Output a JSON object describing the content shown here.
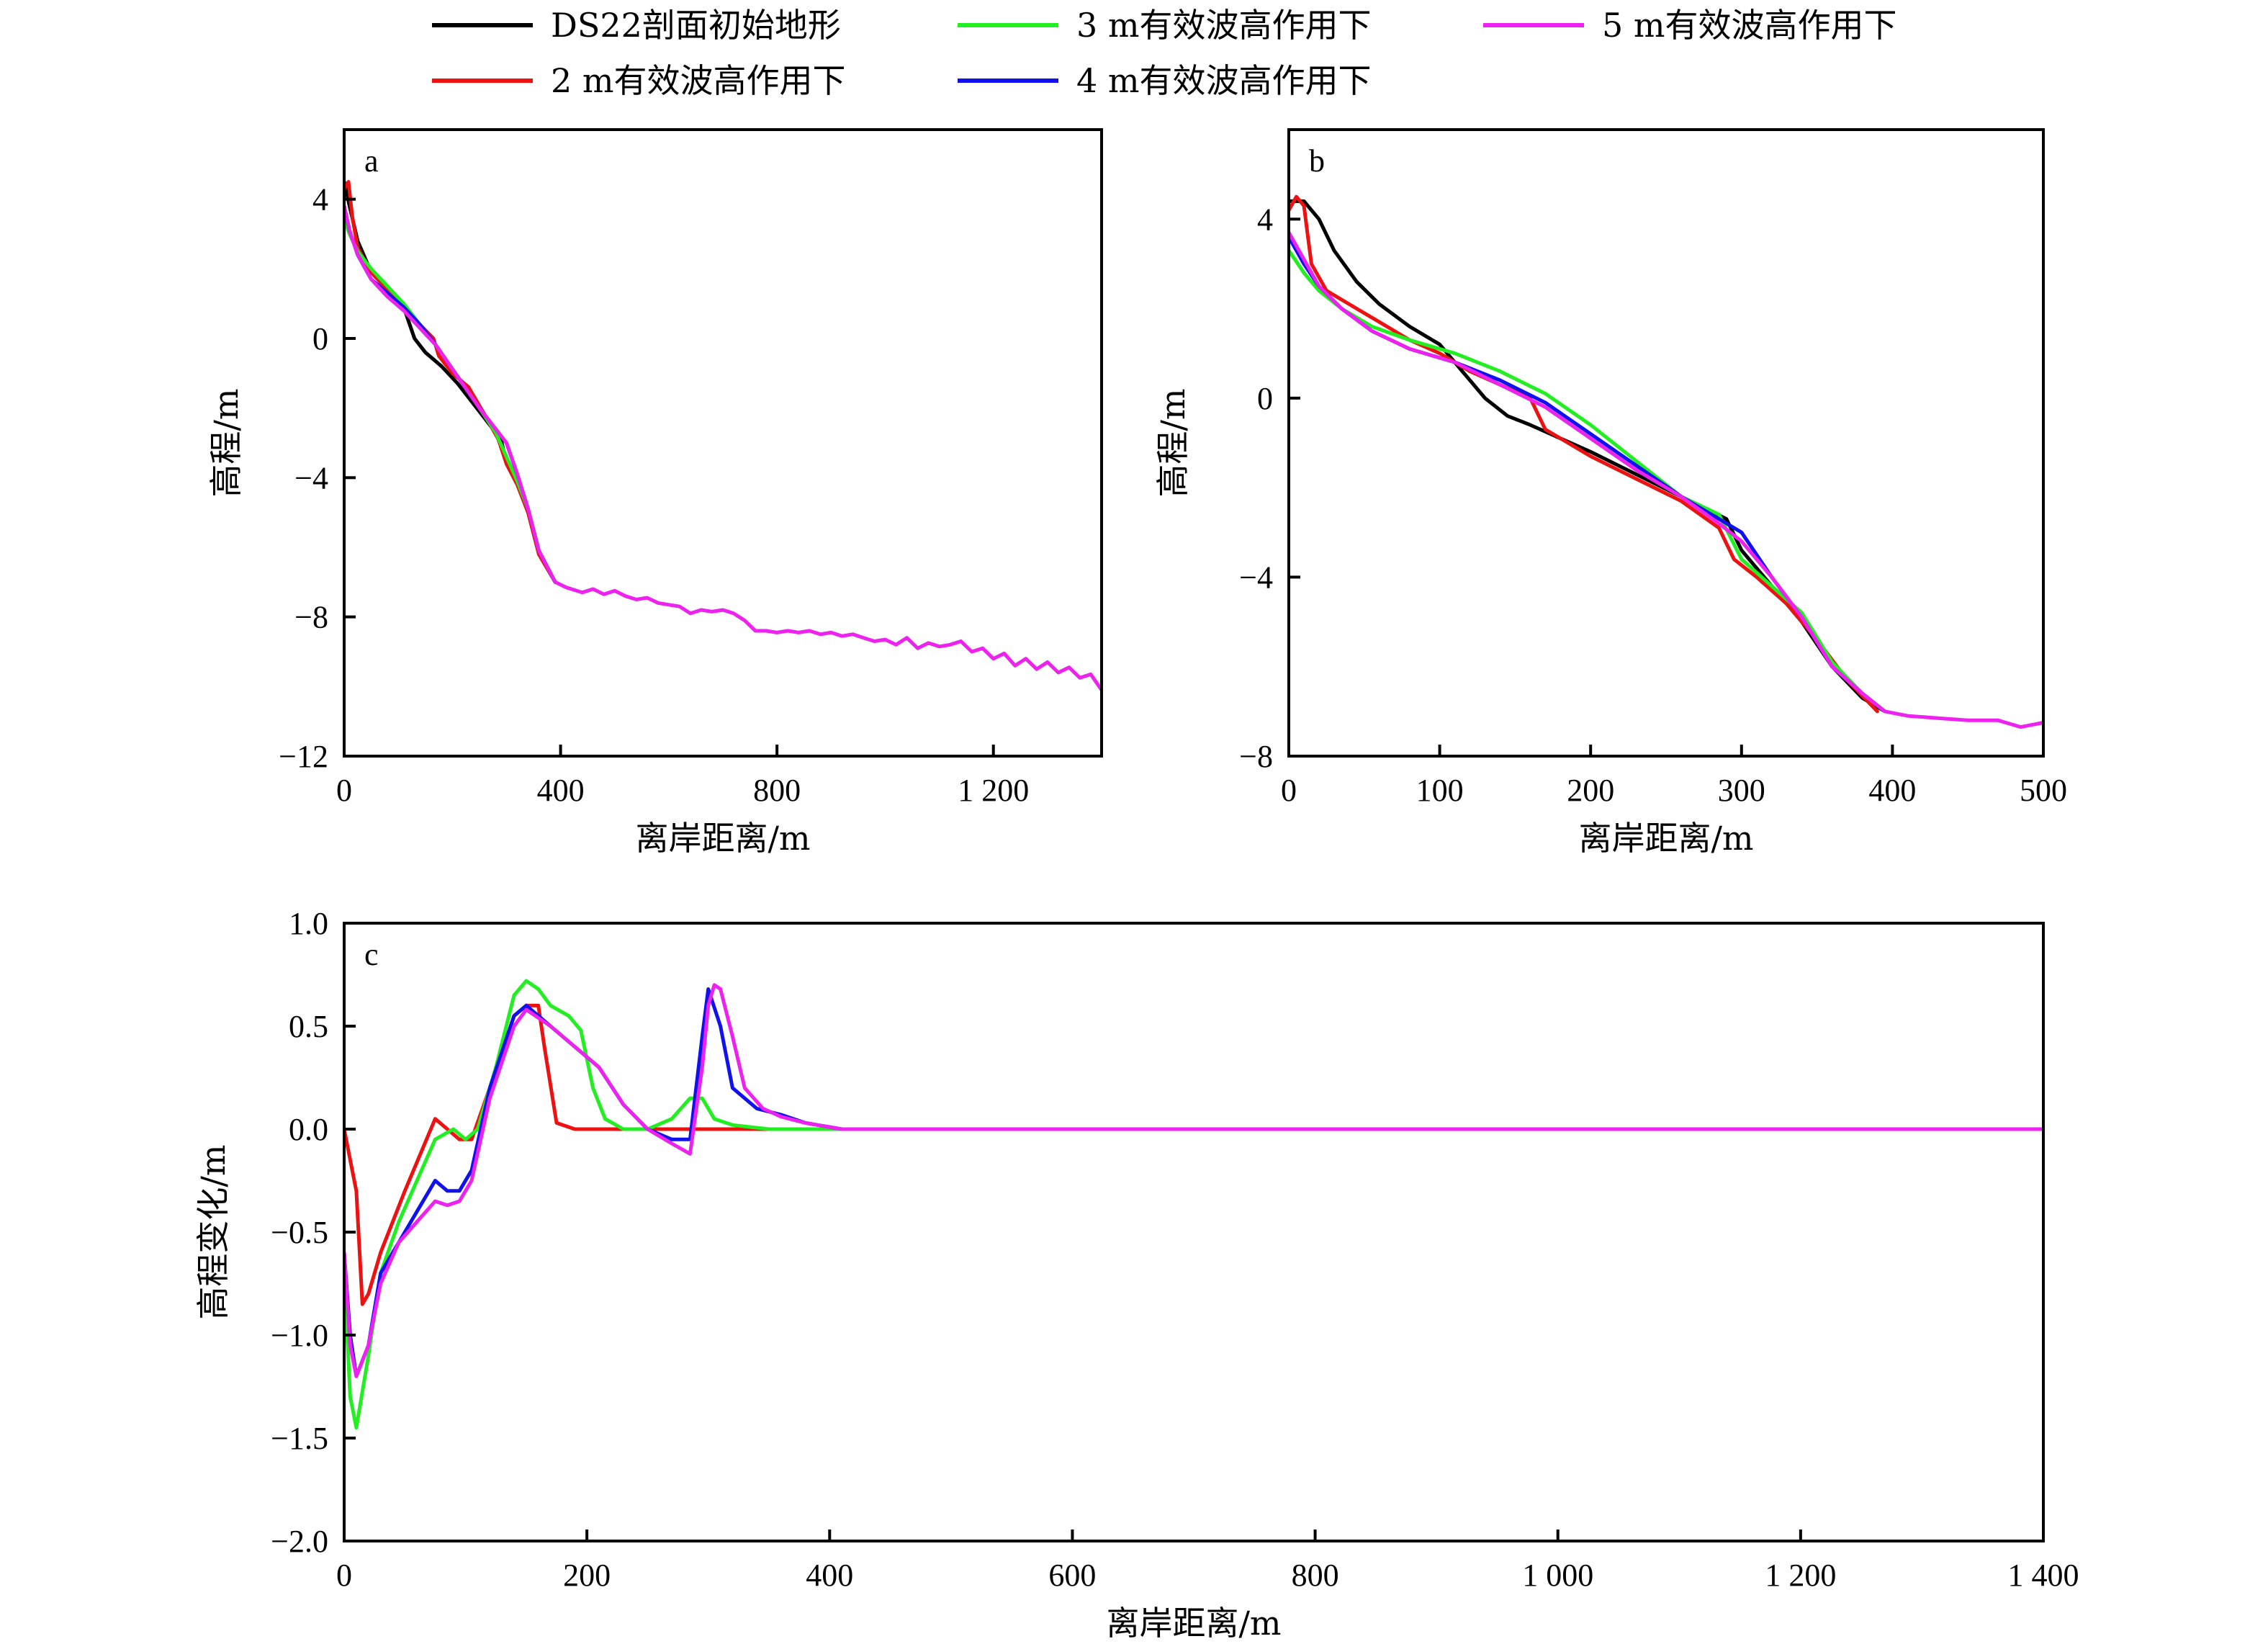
{
  "legend": [
    {
      "label": "DS22剖面初始地形",
      "color": "#000000"
    },
    {
      "label": "3 m有效波高作用下",
      "color": "#22ee22"
    },
    {
      "label": "5 m有效波高作用下",
      "color": "#ee22ee"
    },
    {
      "label": "2 m有效波高作用下",
      "color": "#ee1111"
    },
    {
      "label": "4 m有效波高作用下",
      "color": "#1111ee"
    }
  ],
  "chart_data": [
    {
      "id": "a",
      "type": "line",
      "panel_label": "a",
      "xlabel": "离岸距离/m",
      "ylabel": "高程/m",
      "xlim": [
        0,
        1400
      ],
      "ylim": [
        -12,
        6
      ],
      "xticks": [
        0,
        400,
        800,
        1200
      ],
      "xtick_labels": [
        "0",
        "400",
        "800",
        "1 200"
      ],
      "yticks": [
        4,
        0,
        -4,
        -8,
        -12
      ],
      "ytick_labels": [
        "4",
        "0",
        "−4",
        "−8",
        "−12"
      ],
      "series": [
        {
          "name": "DS22剖面初始地形",
          "color": "#000000",
          "x": [
            0,
            10,
            25,
            50,
            80,
            110,
            130,
            150,
            180,
            210,
            250,
            290,
            300,
            320,
            340,
            360,
            390
          ],
          "y": [
            4.5,
            3.8,
            2.8,
            1.9,
            1.4,
            0.9,
            0.0,
            -0.4,
            -0.8,
            -1.3,
            -2.1,
            -2.9,
            -3.6,
            -4.2,
            -5.0,
            -6.2,
            -7.0
          ]
        },
        {
          "name": "2 m有效波高作用下",
          "color": "#ee1111",
          "x": [
            0,
            8,
            15,
            25,
            50,
            80,
            110,
            140,
            165,
            175,
            200,
            230,
            260,
            285,
            300,
            320,
            340,
            360,
            390
          ],
          "y": [
            4.3,
            4.5,
            3.5,
            2.6,
            1.9,
            1.4,
            0.9,
            0.4,
            0.0,
            -0.5,
            -1.0,
            -1.4,
            -2.2,
            -2.9,
            -3.6,
            -4.2,
            -5.0,
            -6.2,
            -7.0
          ]
        },
        {
          "name": "3 m有效波高作用下",
          "color": "#22ee22",
          "x": [
            0,
            10,
            25,
            50,
            80,
            110,
            140,
            170,
            210,
            250,
            280,
            300,
            320,
            340,
            360,
            390
          ],
          "y": [
            3.4,
            3.0,
            2.5,
            2.0,
            1.5,
            1.0,
            0.4,
            -0.2,
            -1.1,
            -2.0,
            -2.7,
            -3.4,
            -4.1,
            -4.9,
            -6.1,
            -7.0
          ]
        },
        {
          "name": "4 m有效波高作用下",
          "color": "#1111ee",
          "x": [
            0,
            10,
            25,
            50,
            80,
            110,
            140,
            170,
            210,
            250,
            280,
            300,
            320,
            340,
            360,
            390
          ],
          "y": [
            3.8,
            3.1,
            2.4,
            1.7,
            1.3,
            0.9,
            0.4,
            -0.2,
            -1.1,
            -2.0,
            -2.6,
            -3.0,
            -3.9,
            -4.9,
            -6.1,
            -7.0
          ]
        },
        {
          "name": "5 m有效波高作用下",
          "color": "#ee22ee",
          "x": [
            0,
            10,
            25,
            50,
            80,
            110,
            140,
            170,
            210,
            250,
            280,
            300,
            320,
            340,
            360,
            390,
            410,
            440,
            460,
            480,
            500,
            520,
            540,
            560,
            580,
            600,
            620,
            640,
            660,
            680,
            700,
            720,
            740,
            760,
            780,
            800,
            820,
            840,
            860,
            880,
            900,
            920,
            940,
            960,
            980,
            1000,
            1020,
            1040,
            1060,
            1080,
            1100,
            1120,
            1140,
            1160,
            1180,
            1200,
            1220,
            1240,
            1260,
            1280,
            1300,
            1320,
            1340,
            1360,
            1380,
            1400
          ],
          "y": [
            3.8,
            3.1,
            2.4,
            1.7,
            1.2,
            0.8,
            0.3,
            -0.2,
            -1.1,
            -2.0,
            -2.6,
            -3.0,
            -3.9,
            -4.9,
            -6.1,
            -7.0,
            -7.15,
            -7.3,
            -7.2,
            -7.35,
            -7.25,
            -7.4,
            -7.5,
            -7.45,
            -7.6,
            -7.65,
            -7.7,
            -7.9,
            -7.8,
            -7.85,
            -7.8,
            -7.9,
            -8.1,
            -8.4,
            -8.4,
            -8.45,
            -8.4,
            -8.45,
            -8.4,
            -8.5,
            -8.45,
            -8.55,
            -8.5,
            -8.6,
            -8.7,
            -8.65,
            -8.8,
            -8.6,
            -8.9,
            -8.75,
            -8.85,
            -8.8,
            -8.7,
            -9.0,
            -8.9,
            -9.2,
            -9.05,
            -9.4,
            -9.2,
            -9.5,
            -9.3,
            -9.6,
            -9.45,
            -9.75,
            -9.65,
            -10.1
          ]
        }
      ]
    },
    {
      "id": "b",
      "type": "line",
      "panel_label": "b",
      "xlabel": "离岸距离/m",
      "ylabel": "高程/m",
      "xlim": [
        0,
        500
      ],
      "ylim": [
        -8,
        6
      ],
      "xticks": [
        0,
        100,
        200,
        300,
        400,
        500
      ],
      "xtick_labels": [
        "0",
        "100",
        "200",
        "300",
        "400",
        "500"
      ],
      "yticks": [
        4,
        0,
        -4,
        -8
      ],
      "ytick_labels": [
        "4",
        "0",
        "−4",
        "−8"
      ],
      "series": [
        {
          "name": "DS22剖面初始地形",
          "color": "#000000",
          "x": [
            0,
            10,
            20,
            30,
            45,
            60,
            80,
            100,
            115,
            130,
            145,
            160,
            180,
            200,
            230,
            260,
            290,
            300,
            320,
            340,
            360,
            380,
            395
          ],
          "y": [
            4.4,
            4.4,
            4.0,
            3.3,
            2.6,
            2.1,
            1.6,
            1.2,
            0.6,
            0.0,
            -0.4,
            -0.6,
            -0.9,
            -1.2,
            -1.7,
            -2.2,
            -2.7,
            -3.4,
            -4.2,
            -5.0,
            -6.0,
            -6.7,
            -7.0
          ]
        },
        {
          "name": "2 m有效波高作用下",
          "color": "#ee1111",
          "x": [
            0,
            5,
            10,
            15,
            25,
            40,
            60,
            80,
            100,
            120,
            140,
            160,
            170,
            185,
            200,
            230,
            260,
            285,
            295,
            310,
            330,
            350,
            370,
            390
          ],
          "y": [
            4.2,
            4.5,
            4.3,
            3.0,
            2.4,
            2.1,
            1.7,
            1.3,
            1.0,
            0.6,
            0.3,
            0.0,
            -0.7,
            -1.0,
            -1.3,
            -1.8,
            -2.3,
            -2.9,
            -3.6,
            -4.0,
            -4.6,
            -5.4,
            -6.3,
            -7.0
          ]
        },
        {
          "name": "3 m有效波高作用下",
          "color": "#22ee22",
          "x": [
            0,
            10,
            20,
            35,
            55,
            80,
            110,
            140,
            170,
            200,
            230,
            260,
            285,
            300,
            320,
            340,
            360,
            380,
            395
          ],
          "y": [
            3.3,
            2.8,
            2.4,
            2.0,
            1.6,
            1.3,
            1.0,
            0.6,
            0.1,
            -0.6,
            -1.4,
            -2.2,
            -2.6,
            -3.6,
            -4.2,
            -4.8,
            -5.9,
            -6.6,
            -7.0
          ]
        },
        {
          "name": "4 m有效波高作用下",
          "color": "#1111ee",
          "x": [
            0,
            10,
            20,
            35,
            55,
            80,
            110,
            140,
            170,
            200,
            230,
            260,
            285,
            300,
            320,
            340,
            360,
            380,
            395
          ],
          "y": [
            3.6,
            3.0,
            2.5,
            2.0,
            1.5,
            1.1,
            0.8,
            0.4,
            -0.1,
            -0.8,
            -1.5,
            -2.2,
            -2.7,
            -3.0,
            -4.0,
            -4.9,
            -6.0,
            -6.6,
            -7.0
          ]
        },
        {
          "name": "5 m有效波高作用下",
          "color": "#ee22ee",
          "x": [
            0,
            10,
            20,
            35,
            55,
            80,
            110,
            140,
            170,
            200,
            230,
            260,
            285,
            300,
            320,
            340,
            360,
            380,
            395,
            410,
            430,
            450,
            470,
            485,
            500
          ],
          "y": [
            3.7,
            3.1,
            2.5,
            2.0,
            1.5,
            1.1,
            0.8,
            0.3,
            -0.2,
            -0.9,
            -1.6,
            -2.2,
            -2.8,
            -3.2,
            -4.0,
            -4.9,
            -6.0,
            -6.6,
            -7.0,
            -7.1,
            -7.15,
            -7.2,
            -7.2,
            -7.35,
            -7.25
          ]
        }
      ]
    },
    {
      "id": "c",
      "type": "line",
      "panel_label": "c",
      "xlabel": "离岸距离/m",
      "ylabel": "高程变化/m",
      "xlim": [
        0,
        1400
      ],
      "ylim": [
        -2.0,
        1.0
      ],
      "xticks": [
        0,
        200,
        400,
        600,
        800,
        1000,
        1200,
        1400
      ],
      "xtick_labels": [
        "0",
        "200",
        "400",
        "600",
        "800",
        "1 000",
        "1 200",
        "1 400"
      ],
      "yticks": [
        1.0,
        0.5,
        0.0,
        -0.5,
        -1.0,
        -1.5,
        -2.0
      ],
      "ytick_labels": [
        "1.0",
        "0.5",
        "0.0",
        "−0.5",
        "−1.0",
        "−1.5",
        "−2.0"
      ],
      "series": [
        {
          "name": "2 m有效波高作用下",
          "color": "#ee1111",
          "x": [
            0,
            5,
            10,
            15,
            20,
            30,
            50,
            75,
            85,
            95,
            105,
            120,
            140,
            150,
            160,
            165,
            175,
            190,
            250,
            1400
          ],
          "y": [
            0.0,
            -0.15,
            -0.3,
            -0.85,
            -0.8,
            -0.6,
            -0.3,
            0.05,
            0.0,
            -0.05,
            -0.05,
            0.2,
            0.55,
            0.6,
            0.6,
            0.4,
            0.03,
            0.0,
            0.0,
            0.0
          ]
        },
        {
          "name": "3 m有效波高作用下",
          "color": "#22ee22",
          "x": [
            0,
            5,
            10,
            20,
            30,
            45,
            60,
            75,
            90,
            100,
            110,
            125,
            140,
            150,
            160,
            170,
            185,
            195,
            205,
            215,
            230,
            250,
            270,
            285,
            295,
            305,
            320,
            350,
            400,
            1400
          ],
          "y": [
            -0.7,
            -1.3,
            -1.45,
            -1.1,
            -0.7,
            -0.45,
            -0.25,
            -0.05,
            0.0,
            -0.05,
            0.0,
            0.3,
            0.65,
            0.72,
            0.68,
            0.6,
            0.55,
            0.48,
            0.2,
            0.05,
            0.0,
            0.0,
            0.05,
            0.15,
            0.15,
            0.05,
            0.02,
            0.0,
            0.0,
            0.0
          ]
        },
        {
          "name": "4 m有效波高作用下",
          "color": "#1111ee",
          "x": [
            0,
            5,
            10,
            20,
            30,
            45,
            60,
            75,
            85,
            95,
            105,
            120,
            140,
            150,
            170,
            190,
            210,
            230,
            250,
            270,
            285,
            295,
            300,
            310,
            320,
            340,
            360,
            380,
            410,
            1400
          ],
          "y": [
            -0.6,
            -1.0,
            -1.2,
            -1.05,
            -0.7,
            -0.55,
            -0.4,
            -0.25,
            -0.3,
            -0.3,
            -0.2,
            0.2,
            0.55,
            0.6,
            0.5,
            0.4,
            0.3,
            0.12,
            0.0,
            -0.05,
            -0.05,
            0.45,
            0.68,
            0.5,
            0.2,
            0.1,
            0.07,
            0.03,
            0.0,
            0.0
          ]
        },
        {
          "name": "5 m有效波高作用下",
          "color": "#ee22ee",
          "x": [
            0,
            5,
            10,
            20,
            30,
            45,
            60,
            75,
            85,
            95,
            105,
            120,
            140,
            150,
            170,
            190,
            210,
            230,
            250,
            270,
            285,
            295,
            300,
            305,
            310,
            320,
            330,
            345,
            360,
            380,
            410,
            500,
            550,
            650,
            700,
            800,
            900,
            1000,
            1100,
            1200,
            1300,
            1400
          ],
          "y": [
            -0.6,
            -1.05,
            -1.2,
            -1.05,
            -0.75,
            -0.55,
            -0.45,
            -0.35,
            -0.37,
            -0.35,
            -0.25,
            0.15,
            0.5,
            0.58,
            0.5,
            0.4,
            0.3,
            0.12,
            0.0,
            -0.07,
            -0.12,
            0.3,
            0.6,
            0.7,
            0.68,
            0.45,
            0.2,
            0.1,
            0.06,
            0.03,
            0.0,
            0.0,
            0.0,
            0.0,
            0.0,
            0.0,
            0.0,
            0.0,
            0.0,
            0.0,
            0.0,
            0.0
          ]
        }
      ]
    }
  ]
}
